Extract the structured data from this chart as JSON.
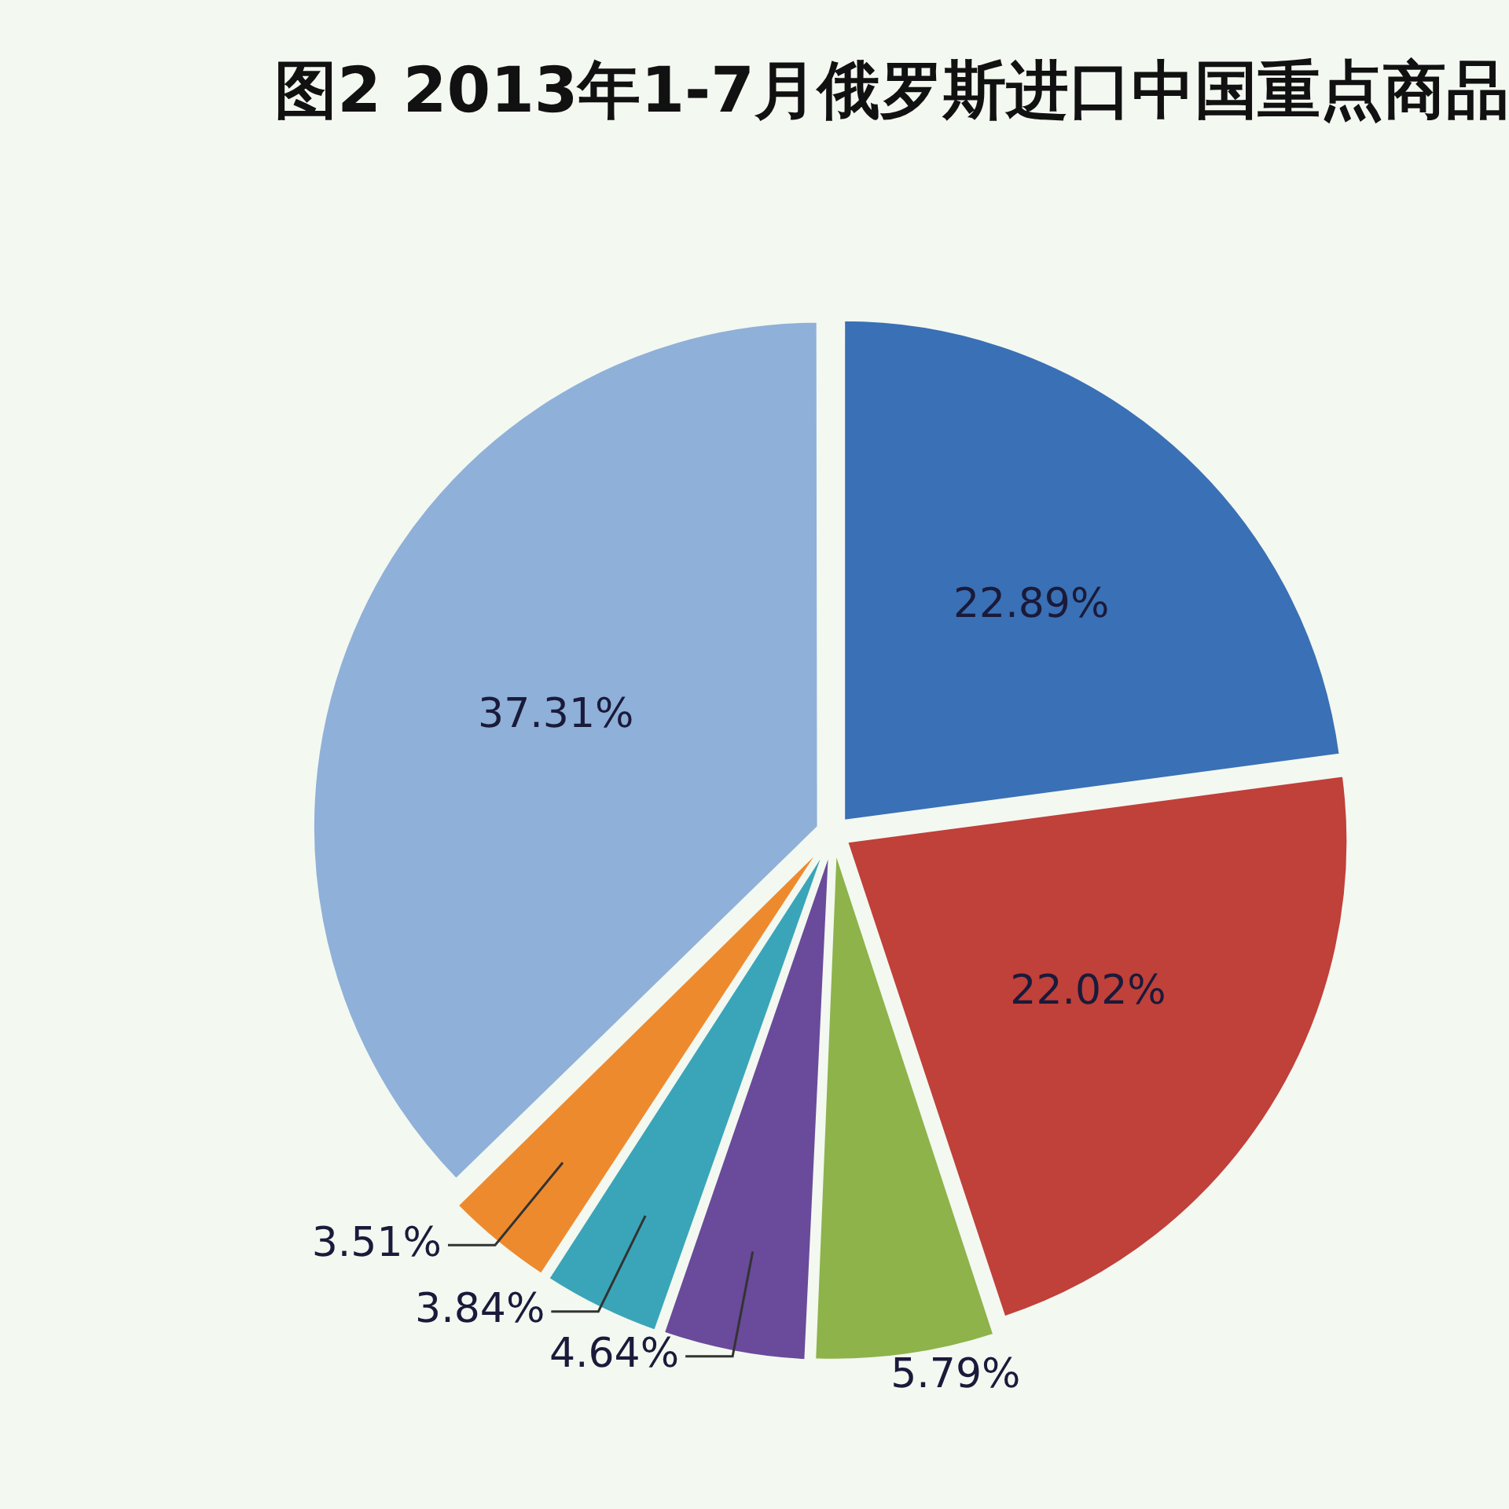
{
  "chart_data": {
    "type": "pie",
    "title": "图2  2013年1-7月俄罗斯进口中国重点商品",
    "categories": [
      null,
      null,
      null,
      null,
      null,
      null,
      null
    ],
    "values": [
      22.89,
      22.02,
      5.79,
      4.64,
      3.84,
      3.51,
      37.31
    ],
    "colors": [
      "#3a70b5",
      "#c0403a",
      "#8db34a",
      "#6a4a9a",
      "#3aa5b8",
      "#ee8a2e",
      "#8fb0d8"
    ],
    "value_labels": [
      "22.89%",
      "22.02%",
      "5.79%",
      "4.64%",
      "3.84%",
      "3.51%",
      "37.31%"
    ],
    "legend": false
  }
}
